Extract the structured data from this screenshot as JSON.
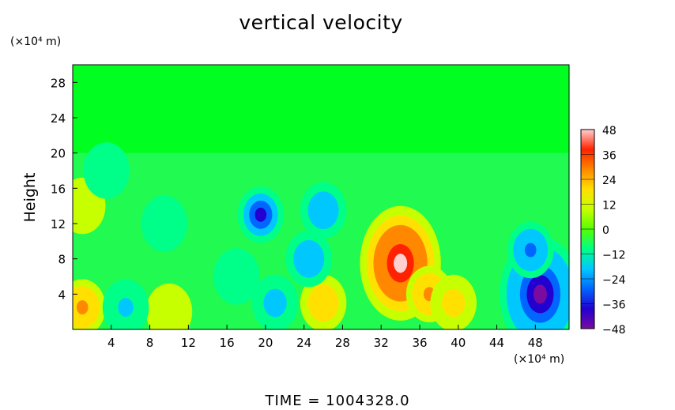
{
  "chart_data": {
    "type": "heatmap",
    "title": "vertical velocity",
    "xlabel": "",
    "ylabel": "Height",
    "x_unit": "(×10⁴ m)",
    "y_unit": "(×10⁴ m)",
    "footer": "TIME  =  1004328.0",
    "xlim": [
      0,
      51.5
    ],
    "ylim": [
      0,
      30
    ],
    "x_ticks": [
      4,
      8,
      12,
      16,
      20,
      24,
      28,
      32,
      36,
      40,
      44,
      48
    ],
    "y_ticks": [
      4,
      8,
      12,
      16,
      20,
      24,
      28
    ],
    "colorbar": {
      "min": -48,
      "max": 48,
      "ticks": [
        48,
        36,
        24,
        12,
        0,
        -12,
        -24,
        -36,
        -48
      ],
      "colors": [
        "#7a0aa0",
        "#2200d0",
        "#0066ff",
        "#00c8ff",
        "#00ff88",
        "#55ff00",
        "#c8ff00",
        "#ffe000",
        "#ff8800",
        "#ff2200",
        "#ffd0d0"
      ]
    },
    "background_value": 0,
    "features": [
      {
        "kind": "updraft",
        "x": 34,
        "y": 7.5,
        "peak": 48
      },
      {
        "kind": "updraft",
        "x": 37,
        "y": 4,
        "peak": 30
      },
      {
        "kind": "updraft",
        "x": 1,
        "y": 2.5,
        "peak": 30
      },
      {
        "kind": "updraft",
        "x": 26,
        "y": 3,
        "peak": 22
      },
      {
        "kind": "updraft",
        "x": 39.5,
        "y": 3,
        "peak": 18
      },
      {
        "kind": "updraft",
        "x": 10,
        "y": 2,
        "peak": 10
      },
      {
        "kind": "updraft",
        "x": 1,
        "y": 14,
        "peak": 12
      },
      {
        "kind": "downdraft",
        "x": 48.5,
        "y": 4,
        "peak": -48
      },
      {
        "kind": "downdraft",
        "x": 47.5,
        "y": 9,
        "peak": -30
      },
      {
        "kind": "downdraft",
        "x": 19.5,
        "y": 13,
        "peak": -34
      },
      {
        "kind": "downdraft",
        "x": 26,
        "y": 13.5,
        "peak": -24
      },
      {
        "kind": "downdraft",
        "x": 24.5,
        "y": 8,
        "peak": -22
      },
      {
        "kind": "downdraft",
        "x": 5.5,
        "y": 2.5,
        "peak": -20
      },
      {
        "kind": "downdraft",
        "x": 21,
        "y": 3,
        "peak": -18
      },
      {
        "kind": "downdraft",
        "x": 9.5,
        "y": 12,
        "peak": -12
      },
      {
        "kind": "downdraft",
        "x": 3.5,
        "y": 18,
        "peak": -12
      },
      {
        "kind": "downdraft",
        "x": 17,
        "y": 6,
        "peak": -10
      }
    ]
  }
}
